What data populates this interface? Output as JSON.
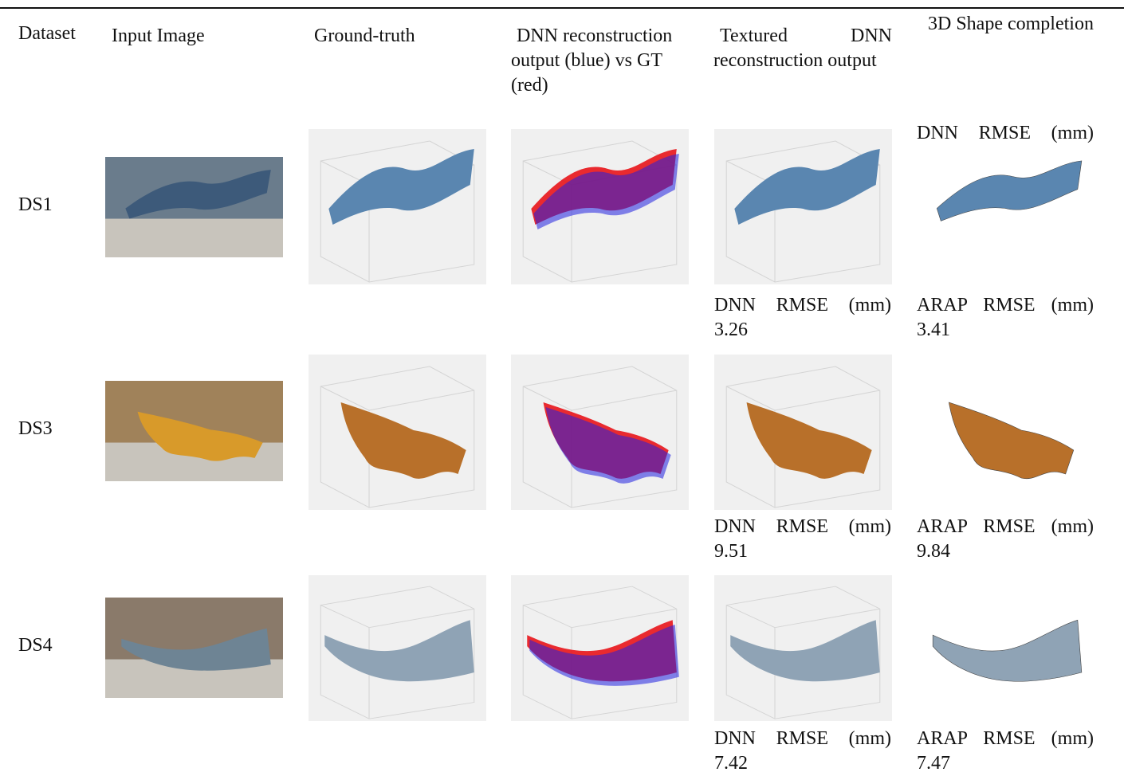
{
  "table": {
    "header": [
      "Dataset",
      "Input Image",
      "Ground-truth",
      "DNN reconstruction output (blue) vs GT (red)",
      "Textured DNN reconstruction output",
      "3D Shape completion"
    ],
    "header_note": "DNN RMSE (mm)",
    "rows": [
      {
        "dataset": "DS1",
        "dnn_label": "DNN RMSE (mm)",
        "dnn_rmse": 3.26,
        "arap_label": "ARAP RMSE (mm)",
        "arap_rmse": 3.41
      },
      {
        "dataset": "DS3",
        "dnn_label": "DNN RMSE (mm)",
        "dnn_rmse": 9.51,
        "arap_label": "ARAP RMSE (mm)",
        "arap_rmse": 9.84
      },
      {
        "dataset": "DS4",
        "dnn_label": "DNN RMSE (mm)",
        "dnn_rmse": 7.42,
        "arap_label": "ARAP RMSE (mm)",
        "arap_rmse": 7.47
      }
    ]
  }
}
